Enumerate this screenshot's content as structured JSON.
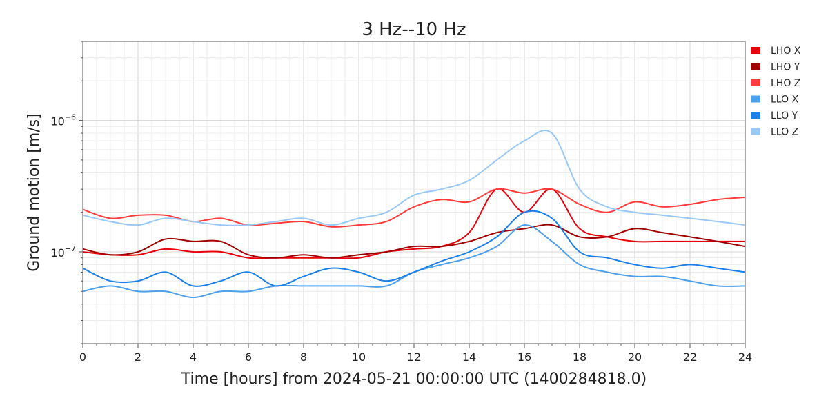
{
  "chart_data": {
    "type": "line",
    "title": "3 Hz--10 Hz",
    "xlabel": "Time [hours] from 2024-05-21 00:00:00 UTC (1400284818.0)",
    "ylabel": "Ground motion [m/s]",
    "xlim": [
      0,
      24
    ],
    "ylim": [
      2e-08,
      4e-06
    ],
    "yscale": "log",
    "x_ticks": [
      0,
      2,
      4,
      6,
      8,
      10,
      12,
      14,
      16,
      18,
      20,
      22,
      24
    ],
    "y_ticks": [
      {
        "value": 1e-07,
        "base": "10",
        "exp": "−7"
      },
      {
        "value": 1e-06,
        "base": "10",
        "exp": "−6"
      }
    ],
    "grid": true,
    "legend_position": "top-right",
    "x": [
      0,
      1,
      2,
      3,
      4,
      5,
      6,
      7,
      8,
      9,
      10,
      11,
      12,
      13,
      14,
      15,
      16,
      17,
      18,
      19,
      20,
      21,
      22,
      23,
      24
    ],
    "series": [
      {
        "name": "LHO X",
        "color": "#e8000b",
        "values": [
          1e-07,
          9.5e-08,
          9.5e-08,
          1.05e-07,
          1e-07,
          1e-07,
          9e-08,
          9e-08,
          9e-08,
          9e-08,
          9e-08,
          1e-07,
          1.05e-07,
          1.1e-07,
          1.4e-07,
          3e-07,
          2e-07,
          3e-07,
          1.5e-07,
          1.3e-07,
          1.2e-07,
          1.2e-07,
          1.2e-07,
          1.2e-07,
          1.2e-07
        ]
      },
      {
        "name": "LHO Y",
        "color": "#a00000",
        "values": [
          1.05e-07,
          9.5e-08,
          1e-07,
          1.25e-07,
          1.2e-07,
          1.2e-07,
          9.5e-08,
          9e-08,
          9.5e-08,
          9e-08,
          9.5e-08,
          1e-07,
          1.1e-07,
          1.1e-07,
          1.2e-07,
          1.4e-07,
          1.5e-07,
          1.6e-07,
          1.3e-07,
          1.3e-07,
          1.5e-07,
          1.4e-07,
          1.3e-07,
          1.2e-07,
          1.1e-07
        ]
      },
      {
        "name": "LHO Z",
        "color": "#ff3b3b",
        "values": [
          2.1e-07,
          1.8e-07,
          1.9e-07,
          1.9e-07,
          1.7e-07,
          1.8e-07,
          1.6e-07,
          1.65e-07,
          1.7e-07,
          1.55e-07,
          1.6e-07,
          1.7e-07,
          2.2e-07,
          2.5e-07,
          2.4e-07,
          3e-07,
          2.8e-07,
          3e-07,
          2.3e-07,
          2e-07,
          2.4e-07,
          2.2e-07,
          2.3e-07,
          2.5e-07,
          2.6e-07
        ]
      },
      {
        "name": "LLO X",
        "color": "#4c9fe9",
        "values": [
          5e-08,
          5.5e-08,
          5e-08,
          5e-08,
          4.5e-08,
          5e-08,
          5e-08,
          5.5e-08,
          5.5e-08,
          5.5e-08,
          5.5e-08,
          5.5e-08,
          7e-08,
          8e-08,
          9e-08,
          1.1e-07,
          1.6e-07,
          1.2e-07,
          8e-08,
          7e-08,
          6.5e-08,
          6.5e-08,
          6e-08,
          5.5e-08,
          5.5e-08
        ]
      },
      {
        "name": "LLO Y",
        "color": "#1a7fe8",
        "values": [
          7.5e-08,
          6e-08,
          6e-08,
          7e-08,
          5.5e-08,
          6e-08,
          7e-08,
          5.5e-08,
          6.5e-08,
          7.5e-08,
          7e-08,
          6e-08,
          7e-08,
          8.5e-08,
          1e-07,
          1.3e-07,
          2e-07,
          1.8e-07,
          1e-07,
          9e-08,
          8e-08,
          7.5e-08,
          8e-08,
          7.5e-08,
          7e-08
        ]
      },
      {
        "name": "LLO Z",
        "color": "#99c8f5",
        "values": [
          1.9e-07,
          1.7e-07,
          1.6e-07,
          1.8e-07,
          1.7e-07,
          1.6e-07,
          1.6e-07,
          1.7e-07,
          1.8e-07,
          1.6e-07,
          1.8e-07,
          2e-07,
          2.7e-07,
          3e-07,
          3.5e-07,
          5e-07,
          7e-07,
          8e-07,
          3e-07,
          2.2e-07,
          2e-07,
          1.9e-07,
          1.8e-07,
          1.7e-07,
          1.6e-07
        ]
      }
    ]
  }
}
